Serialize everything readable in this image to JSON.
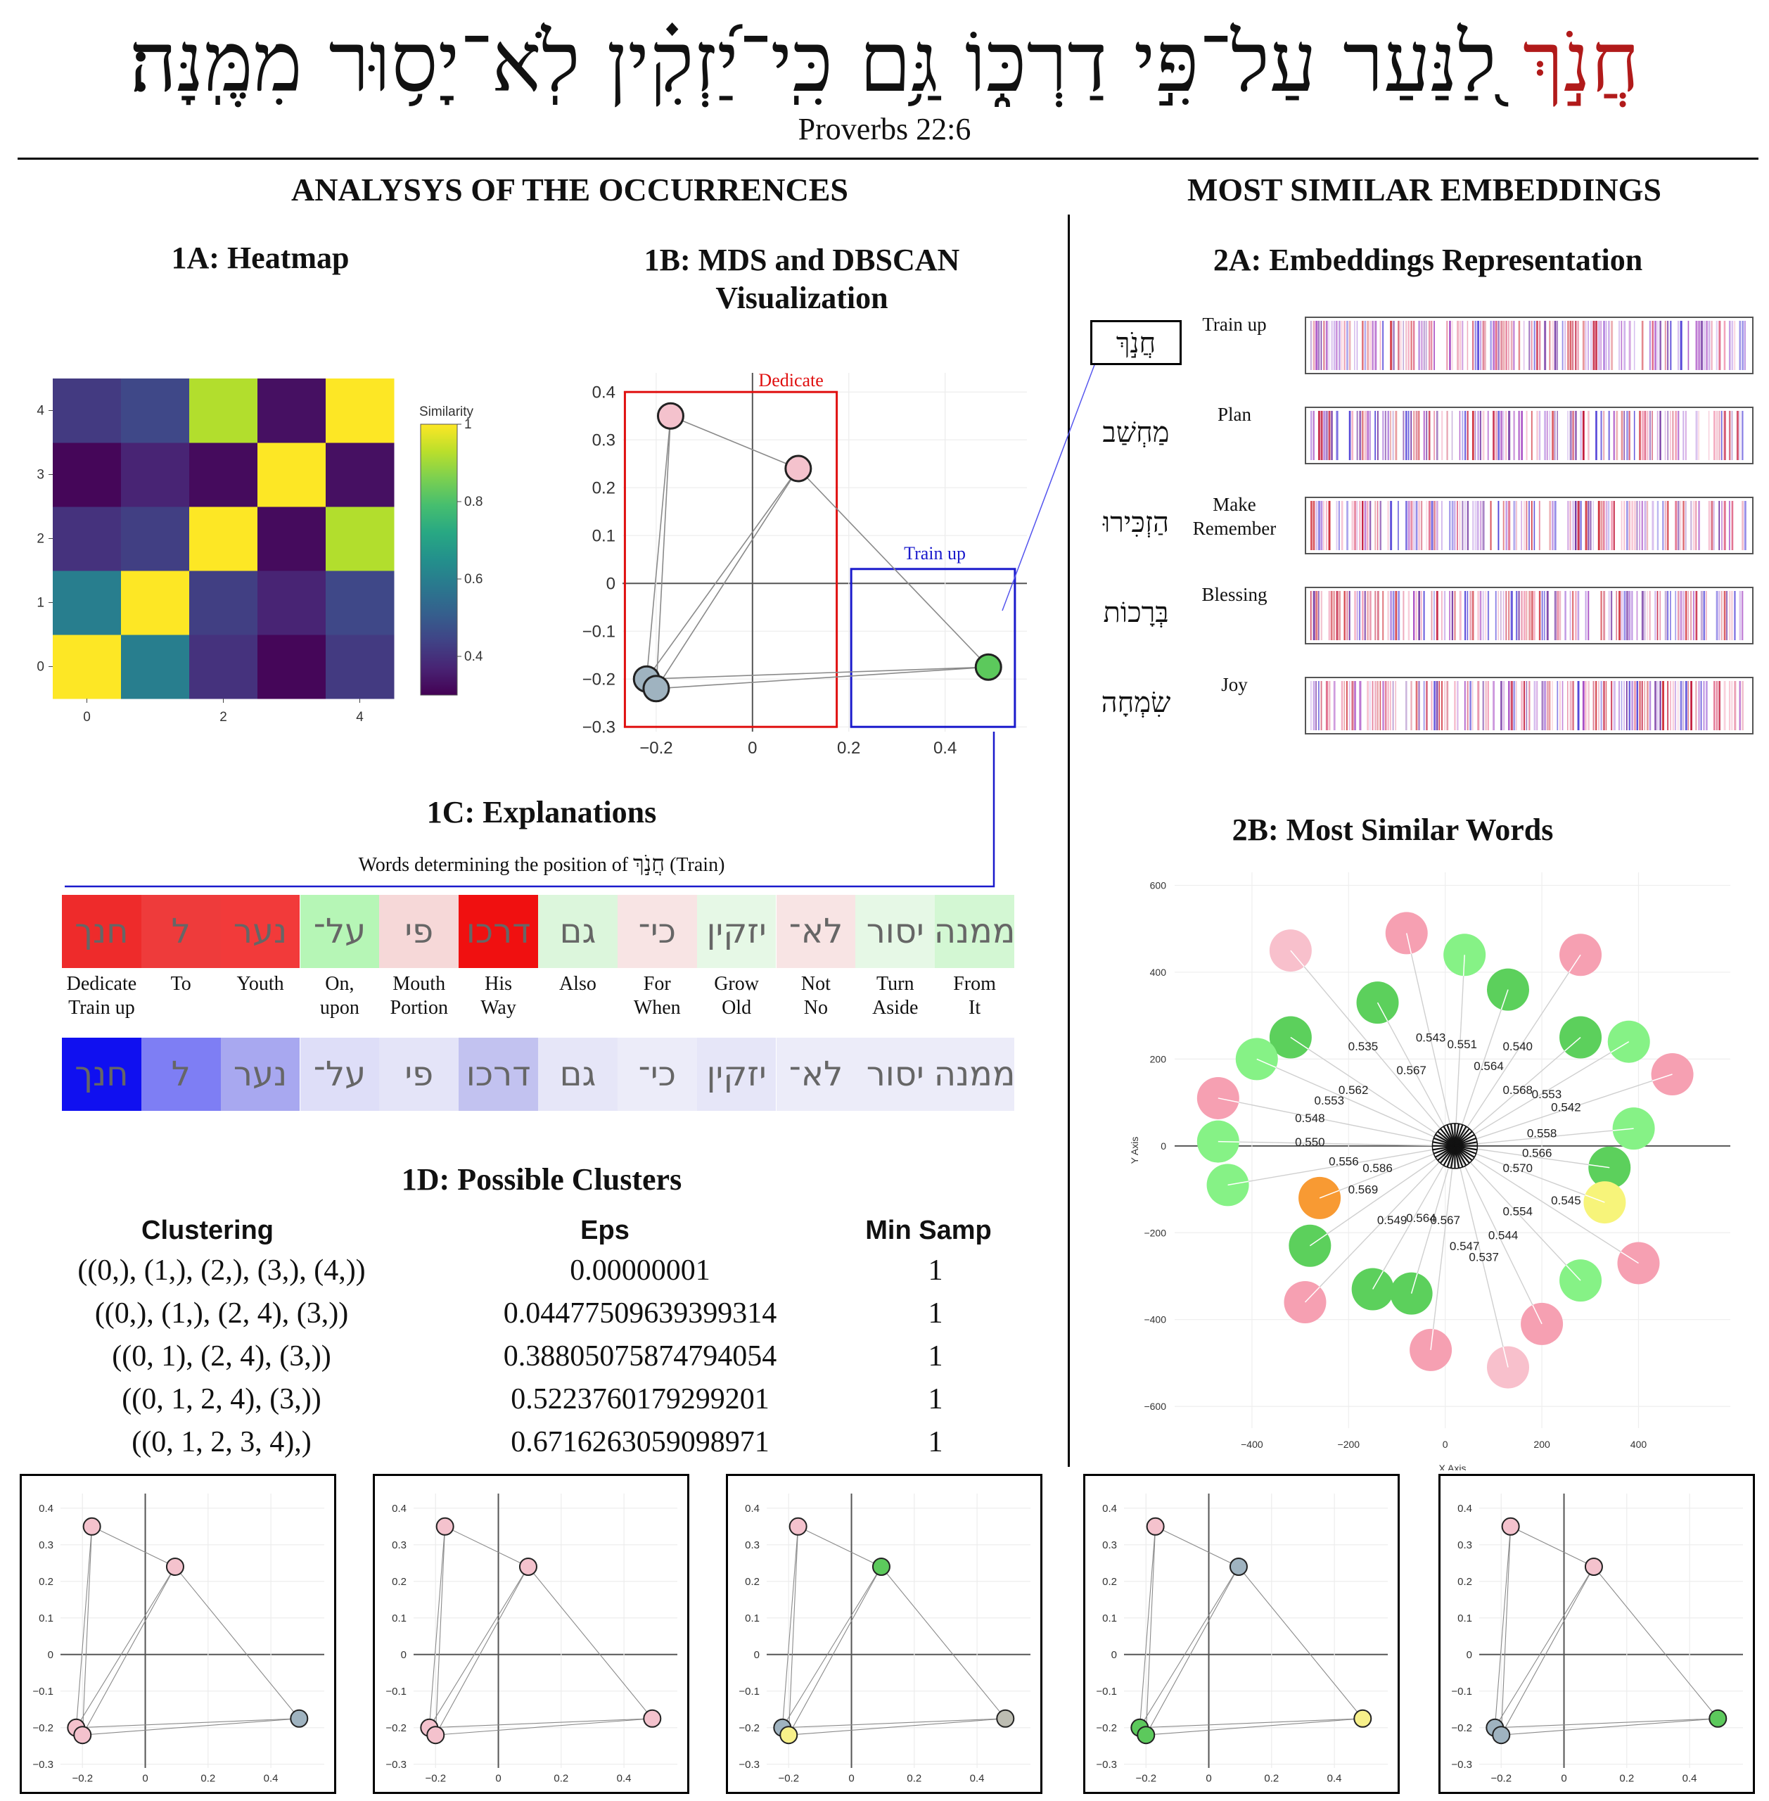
{
  "header": {
    "verse_highlight": "חֲנֹ֣ךְ",
    "verse_rest": "לַ֭נַּעַר עַל־פִּ֣י דַרְכּ֑וֹ גַּ֥ם כִּֽי־יַ֝זְקִ֗ין לֹֽא־יָס֥וּר מִמֶּֽנָּה׃",
    "reference": "Proverbs 22:6"
  },
  "sections": {
    "left": "ANALYSYS OF THE OCCURRENCES",
    "right": "MOST SIMILAR EMBEDDINGS"
  },
  "heatmap": {
    "title": "1A: Heatmap",
    "colorbar_label": "Similarity",
    "colorbar_ticks": [
      "1",
      "0.8",
      "0.6",
      "0.4"
    ],
    "colorbar_values": [
      1,
      0.8,
      0.6,
      0.4
    ],
    "colorbar_range": [
      0.3,
      1
    ],
    "chart_data": {
      "type": "heatmap",
      "x_ticks": [
        "0",
        "2",
        "4"
      ],
      "y_ticks": [
        "0",
        "1",
        "2",
        "3",
        "4"
      ],
      "rows_bottom_to_top": [
        [
          1.0,
          0.6,
          0.4,
          0.31,
          0.42
        ],
        [
          0.6,
          1.0,
          0.43,
          0.37,
          0.45
        ],
        [
          0.4,
          0.43,
          1.0,
          0.32,
          0.92
        ],
        [
          0.31,
          0.37,
          0.32,
          1.0,
          0.33
        ],
        [
          0.42,
          0.45,
          0.92,
          0.33,
          1.0
        ]
      ]
    }
  },
  "mds": {
    "title_line1": "1B: MDS and DBSCAN",
    "title_line2": "Visualization",
    "box_dedicate": "Dedicate",
    "box_train": "Train up",
    "chart_data": {
      "type": "scatter",
      "xlim": [
        -0.27,
        0.57
      ],
      "ylim": [
        -0.31,
        0.44
      ],
      "x_ticks": [
        -0.2,
        0,
        0.2,
        0.4
      ],
      "x_tick_labels": [
        "−0.2",
        "0",
        "0.2",
        "0.4"
      ],
      "y_ticks": [
        -0.3,
        -0.2,
        -0.1,
        0,
        0.1,
        0.2,
        0.3,
        0.4
      ],
      "y_tick_labels": [
        "−0.3",
        "−0.2",
        "−0.1",
        "0",
        "0.1",
        "0.2",
        "0.3",
        "0.4"
      ],
      "points": [
        {
          "x": -0.22,
          "y": -0.2,
          "color": "#9fb3c0"
        },
        {
          "x": -0.2,
          "y": -0.22,
          "color": "#9fb3c0"
        },
        {
          "x": -0.17,
          "y": 0.35,
          "color": "#f4c2cd"
        },
        {
          "x": 0.095,
          "y": 0.24,
          "color": "#f4c2cd"
        },
        {
          "x": 0.49,
          "y": -0.175,
          "color": "#5cc95c"
        }
      ],
      "edges": [
        [
          0,
          2
        ],
        [
          1,
          2
        ],
        [
          0,
          3
        ],
        [
          1,
          3
        ],
        [
          0,
          4
        ],
        [
          1,
          4
        ],
        [
          2,
          3
        ],
        [
          3,
          4
        ]
      ],
      "box_dedicate_data": {
        "x0": -0.265,
        "x1": 0.175,
        "y0": -0.3,
        "y1": 0.4
      },
      "box_train_data": {
        "x0": 0.205,
        "x1": 0.545,
        "y0": -0.3,
        "y1": 0.03
      }
    }
  },
  "explanations": {
    "title": "1C: Explanations",
    "subtitle_prefix": "Words determining the position of",
    "subtitle_word": "חֲנֹ֣ךְ",
    "subtitle_suffix": "(Train)",
    "words": [
      {
        "heb": "ממנה",
        "en1": "From",
        "en2": "It",
        "c1": "#d3f7d3",
        "c2": "#ececf9"
      },
      {
        "heb": "יסור",
        "en1": "Turn",
        "en2": "Aside",
        "c1": "#e6f8e6",
        "c2": "#ececf9"
      },
      {
        "heb": "לא־",
        "en1": "Not",
        "en2": "No",
        "c1": "#f8e4e4",
        "c2": "#ececf9"
      },
      {
        "heb": "יזקין",
        "en1": "Grow",
        "en2": "Old",
        "c1": "#e6f8e6",
        "c2": "#e6e6f8"
      },
      {
        "heb": "כי־",
        "en1": "For",
        "en2": "When",
        "c1": "#f8e4e4",
        "c2": "#ececf9"
      },
      {
        "heb": "גם",
        "en1": "Also",
        "en2": "",
        "c1": "#dcf6dc",
        "c2": "#e6e6f8"
      },
      {
        "heb": "דרכו",
        "en1": "His",
        "en2": "Way",
        "c1": "#f01010",
        "c2": "#c2c2f0"
      },
      {
        "heb": "פי",
        "en1": "Mouth",
        "en2": "Portion",
        "c1": "#f6d8d8",
        "c2": "#e4e4f8"
      },
      {
        "heb": "על־",
        "en1": "On,",
        "en2": "upon",
        "c1": "#b6f6b6",
        "c2": "#dedef8"
      },
      {
        "heb": "נער",
        "en1": "Youth",
        "en2": "",
        "c1": "#f23a3a",
        "c2": "#a8a8f0"
      },
      {
        "heb": "ל",
        "en1": "To",
        "en2": "",
        "c1": "#ee3b3b",
        "c2": "#7e7ef4"
      },
      {
        "heb": "חנך",
        "en1": "Dedicate",
        "en2": "Train up",
        "c1": "#ee2b2b",
        "c2": "#1010f0"
      }
    ]
  },
  "clusters": {
    "title": "1D: Possible Clusters",
    "headers": {
      "clustering": "Clustering",
      "eps": "Eps",
      "min_samp": "Min Samp"
    },
    "rows": [
      {
        "clustering": "((0,), (1,), (2,), (3,), (4,))",
        "eps": "0.00000001",
        "min_samp": "1"
      },
      {
        "clustering": "((0,), (1,), (2, 4), (3,))",
        "eps": "0.04477509639399314",
        "min_samp": "1"
      },
      {
        "clustering": "((0, 1), (2, 4), (3,))",
        "eps": "0.38805075874794054",
        "min_samp": "1"
      },
      {
        "clustering": "((0, 1, 2, 4), (3,))",
        "eps": "0.5223760179299201",
        "min_samp": "1"
      },
      {
        "clustering": "((0, 1, 2, 3, 4),)",
        "eps": "0.6716263059098971",
        "min_samp": "1"
      }
    ]
  },
  "mini_plots": {
    "x_tick_labels": [
      "−0.2",
      "0",
      "0.2",
      "0.4"
    ],
    "y_tick_labels": [
      "−0.3",
      "−0.2",
      "−0.1",
      "0",
      "0.1",
      "0.2",
      "0.3",
      "0.4"
    ],
    "colorings": [
      [
        "#f4c2cd",
        "#f4c2cd",
        "#f4c2cd",
        "#f4c2cd",
        "#9fb3c0"
      ],
      [
        "#f4c2cd",
        "#f4c2cd",
        "#f4c2cd",
        "#f4c2cd",
        "#f4c2cd"
      ],
      [
        "#9fb3c0",
        "#f7f08a",
        "#f4c2cd",
        "#5cc95c",
        "#bdbdb2"
      ],
      [
        "#5cc95c",
        "#5cc95c",
        "#f4c2cd",
        "#9fb3c0",
        "#f7f08a"
      ],
      [
        "#9fb3c0",
        "#9fb3c0",
        "#f4c2cd",
        "#f4c2cd",
        "#5cc95c"
      ]
    ]
  },
  "embeddings": {
    "title": "2A:  Embeddings Representation",
    "items": [
      {
        "heb": "חֲנֹ֣ךְ",
        "en": "Train up",
        "seed": 11
      },
      {
        "heb": "מַחְשַׁב",
        "en": "Plan",
        "seed": 23
      },
      {
        "heb": "הַזְכִּירוּ",
        "en": "Make Remember",
        "seed": 37
      },
      {
        "heb": "בְּרָכוֹת",
        "en": "Blessing",
        "seed": 51
      },
      {
        "heb": "שִׂמְחָה",
        "en": "Joy",
        "seed": 67
      }
    ]
  },
  "similar": {
    "title": "2B: Most Similar Words",
    "xlabel": "X Axis",
    "ylabel": "Y Axis",
    "chart_data": {
      "type": "scatter",
      "xlim": [
        -560,
        590
      ],
      "ylim": [
        -650,
        630
      ],
      "x_ticks": [
        -400,
        -200,
        0,
        200,
        400
      ],
      "x_tick_labels": [
        "−400",
        "−200",
        "0",
        "200",
        "400"
      ],
      "y_ticks": [
        -600,
        -400,
        -200,
        0,
        200,
        400,
        600
      ],
      "y_tick_labels": [
        "−600",
        "−400",
        "−200",
        "0",
        "200",
        "400",
        "600"
      ],
      "center": {
        "x": 20,
        "y": 0
      },
      "points": [
        {
          "x": -320,
          "y": 450,
          "c": "#f8c0cc"
        },
        {
          "x": -80,
          "y": 490,
          "c": "#f6a0b2"
        },
        {
          "x": 40,
          "y": 440,
          "c": "#86f286"
        },
        {
          "x": -140,
          "y": 330,
          "c": "#5cd05c"
        },
        {
          "x": 130,
          "y": 360,
          "c": "#5cd05c"
        },
        {
          "x": 280,
          "y": 440,
          "c": "#f6a0b2"
        },
        {
          "x": -320,
          "y": 250,
          "c": "#5cd05c"
        },
        {
          "x": -390,
          "y": 200,
          "c": "#86f286"
        },
        {
          "x": 280,
          "y": 250,
          "c": "#5cd05c"
        },
        {
          "x": 380,
          "y": 240,
          "c": "#86f286"
        },
        {
          "x": -470,
          "y": 110,
          "c": "#f6a0b2"
        },
        {
          "x": 470,
          "y": 165,
          "c": "#f6a0b2"
        },
        {
          "x": -470,
          "y": 10,
          "c": "#86f286"
        },
        {
          "x": 390,
          "y": 40,
          "c": "#86f286"
        },
        {
          "x": -450,
          "y": -90,
          "c": "#86f286"
        },
        {
          "x": -260,
          "y": -120,
          "c": "#f89a33"
        },
        {
          "x": 340,
          "y": -50,
          "c": "#5cd05c"
        },
        {
          "x": 330,
          "y": -130,
          "c": "#f7f47a"
        },
        {
          "x": -280,
          "y": -230,
          "c": "#5cd05c"
        },
        {
          "x": 400,
          "y": -270,
          "c": "#f6a0b2"
        },
        {
          "x": -290,
          "y": -360,
          "c": "#f6a0b2"
        },
        {
          "x": -150,
          "y": -330,
          "c": "#5cd05c"
        },
        {
          "x": -70,
          "y": -340,
          "c": "#5cd05c"
        },
        {
          "x": 280,
          "y": -310,
          "c": "#86f286"
        },
        {
          "x": 200,
          "y": -410,
          "c": "#f6a0b2"
        },
        {
          "x": -30,
          "y": -470,
          "c": "#f6a0b2"
        },
        {
          "x": 130,
          "y": -510,
          "c": "#f8c0cc"
        }
      ],
      "labels": [
        {
          "t": "0.543",
          "x": -30,
          "y": 240
        },
        {
          "t": "0.551",
          "x": 35,
          "y": 225
        },
        {
          "t": "0.535",
          "x": -170,
          "y": 220
        },
        {
          "t": "0.540",
          "x": 150,
          "y": 220
        },
        {
          "t": "0.567",
          "x": -70,
          "y": 165
        },
        {
          "t": "0.564",
          "x": 90,
          "y": 175
        },
        {
          "t": "0.562",
          "x": -190,
          "y": 120
        },
        {
          "t": "0.568",
          "x": 150,
          "y": 120
        },
        {
          "t": "0.553",
          "x": 210,
          "y": 110
        },
        {
          "t": "0.553",
          "x": -240,
          "y": 95
        },
        {
          "t": "0.542",
          "x": 250,
          "y": 80
        },
        {
          "t": "0.548",
          "x": -280,
          "y": 55
        },
        {
          "t": "0.558",
          "x": 200,
          "y": 20
        },
        {
          "t": "0.550",
          "x": -280,
          "y": 0
        },
        {
          "t": "0.566",
          "x": 190,
          "y": -25
        },
        {
          "t": "0.556",
          "x": -210,
          "y": -45
        },
        {
          "t": "0.586",
          "x": -140,
          "y": -60
        },
        {
          "t": "0.570",
          "x": 150,
          "y": -60
        },
        {
          "t": "0.569",
          "x": -170,
          "y": -110
        },
        {
          "t": "0.545",
          "x": 250,
          "y": -135
        },
        {
          "t": "0.554",
          "x": 150,
          "y": -160
        },
        {
          "t": "0.549",
          "x": -110,
          "y": -180
        },
        {
          "t": "0.564",
          "x": -50,
          "y": -175
        },
        {
          "t": "0.567",
          "x": 0,
          "y": -180
        },
        {
          "t": "0.544",
          "x": 120,
          "y": -215
        },
        {
          "t": "0.547",
          "x": 40,
          "y": -240
        },
        {
          "t": "0.537",
          "x": 80,
          "y": -265
        }
      ]
    }
  }
}
